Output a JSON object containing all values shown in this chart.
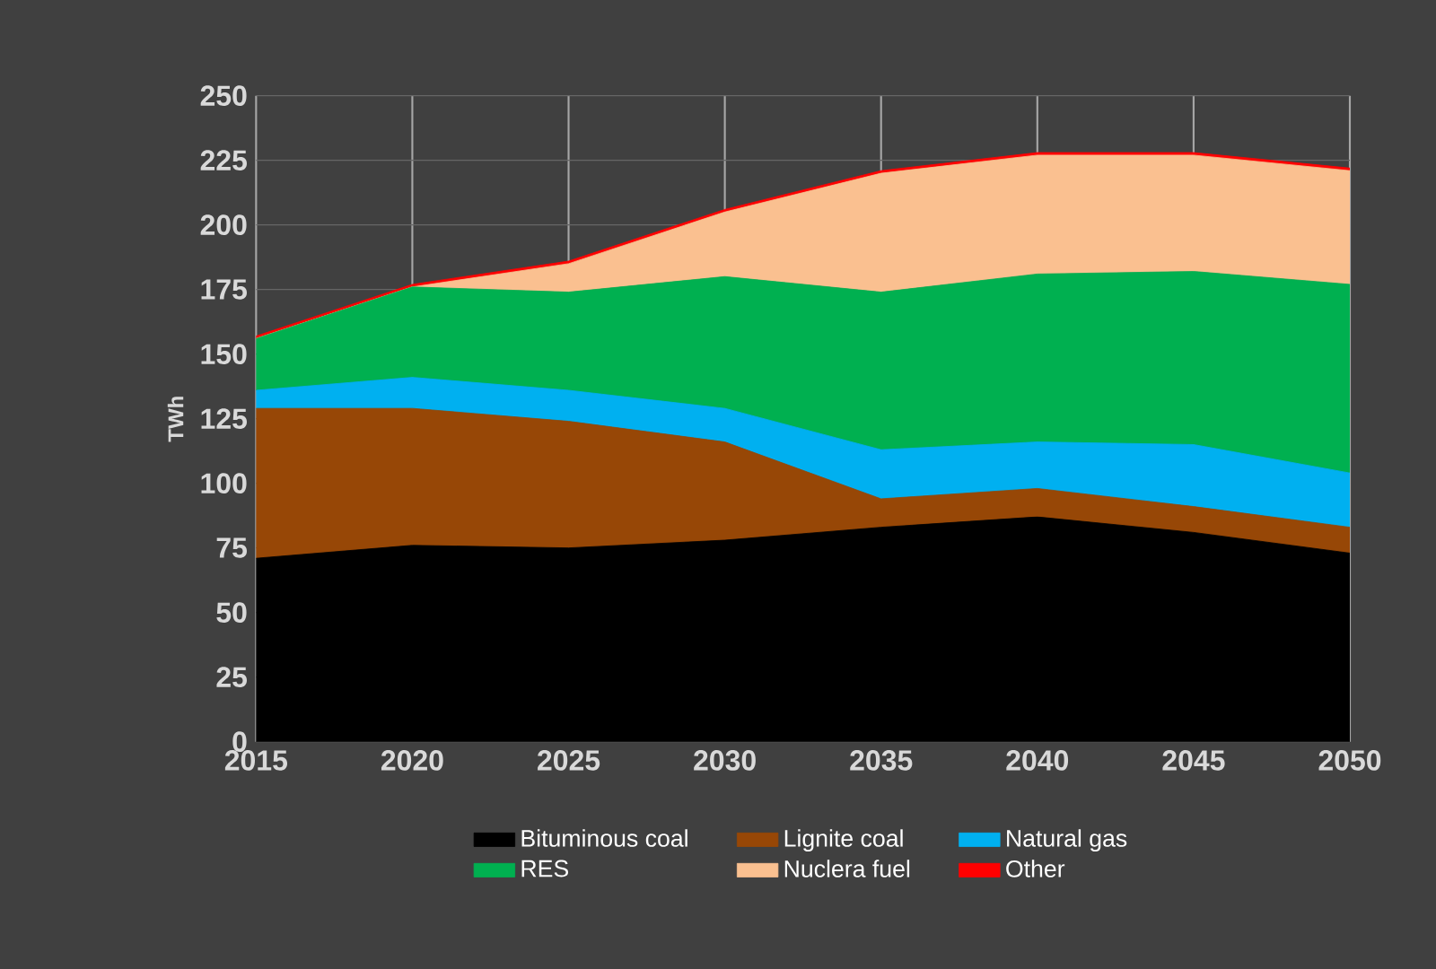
{
  "chart_data": {
    "type": "area",
    "stacked": true,
    "ylabel": "TWh",
    "x": [
      2015,
      2020,
      2025,
      2030,
      2035,
      2040,
      2045,
      2050
    ],
    "xlim": [
      2015,
      2050
    ],
    "xticks": [
      2015,
      2020,
      2025,
      2030,
      2035,
      2040,
      2045,
      2050
    ],
    "ylim": [
      0,
      250
    ],
    "yticks": [
      0,
      25,
      50,
      75,
      100,
      125,
      150,
      175,
      200,
      225,
      250
    ],
    "grid": true,
    "legend": "bottom",
    "series": [
      {
        "name": "Bituminous coal",
        "color": "#000000",
        "values": [
          71,
          76,
          75,
          78,
          83,
          87,
          81,
          73
        ]
      },
      {
        "name": "Lignite coal",
        "color": "#974706",
        "values": [
          58,
          53,
          49,
          38,
          11,
          11,
          10,
          10
        ]
      },
      {
        "name": "Natural gas",
        "color": "#00b0f0",
        "values": [
          7,
          12,
          12,
          13,
          19,
          18,
          24,
          21
        ]
      },
      {
        "name": "RES",
        "color": "#00b050",
        "values": [
          20,
          35,
          38,
          51,
          61,
          65,
          67,
          73
        ]
      },
      {
        "name": "Nuclera fuel",
        "color": "#fac090",
        "values": [
          0,
          0,
          11,
          25,
          46,
          46,
          45,
          44
        ]
      },
      {
        "name": "Other",
        "color": "#ff0000",
        "values": [
          1,
          1,
          1,
          1,
          1,
          1,
          1,
          1
        ]
      }
    ]
  }
}
